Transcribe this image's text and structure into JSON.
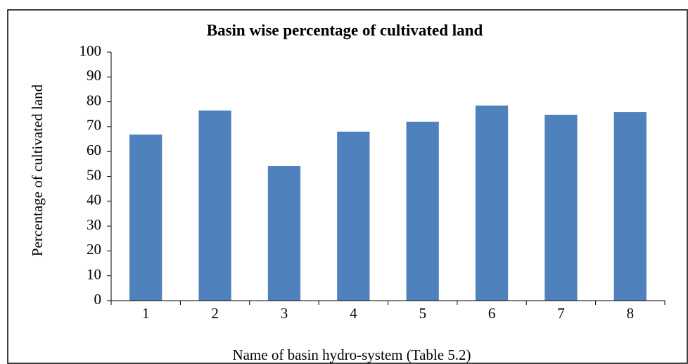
{
  "chart_data": {
    "type": "bar",
    "title": "Basin wise percentage of cultivated land",
    "x_label": "Name of basin hydro-system  (Table 5.2)",
    "y_label": "Percentage of cultivated land",
    "categories": [
      "1",
      "2",
      "3",
      "4",
      "5",
      "6",
      "7",
      "8"
    ],
    "values": [
      66.8,
      76.5,
      54.1,
      68,
      72,
      78.5,
      74.8,
      75.9
    ],
    "color": "#4f81bd",
    "ylim": [
      0,
      100
    ],
    "yticks": [
      0,
      10,
      20,
      30,
      40,
      50,
      60,
      70,
      80,
      90,
      100
    ],
    "grid": false
  }
}
